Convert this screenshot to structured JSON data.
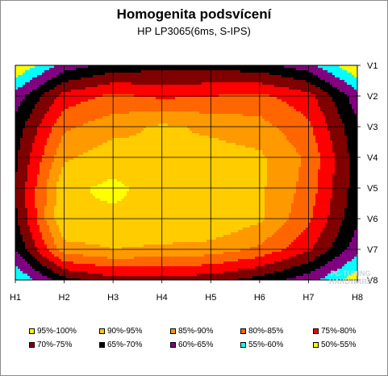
{
  "chart_data": {
    "type": "heatmap",
    "title": "Homogenita podsvícení",
    "subtitle": "HP LP3065(6ms, S-IPS)",
    "x_ticks": [
      "H1",
      "H2",
      "H3",
      "H4",
      "H5",
      "H6",
      "H7",
      "H8"
    ],
    "y_ticks": [
      "V1",
      "V2",
      "V3",
      "V4",
      "V5",
      "V6",
      "V7",
      "V8"
    ],
    "grid": true,
    "legend_position": "bottom",
    "values": [
      [
        50,
        62,
        67,
        68,
        68,
        67,
        62,
        50
      ],
      [
        62,
        77,
        81,
        79,
        80,
        81,
        77,
        62
      ],
      [
        67,
        84,
        88,
        91,
        89,
        87,
        81,
        66
      ],
      [
        69,
        89,
        93,
        90,
        92,
        91,
        84,
        67
      ],
      [
        70,
        94,
        96,
        93,
        93,
        91,
        83,
        67
      ],
      [
        69,
        95,
        94,
        95,
        95,
        91,
        81,
        66
      ],
      [
        65,
        88,
        90,
        89,
        88,
        84,
        76,
        62
      ],
      [
        55,
        68,
        73,
        73,
        72,
        68,
        62,
        52
      ]
    ],
    "bands": [
      {
        "label": "95%-100%",
        "min": 95,
        "max": 100,
        "color": "#ffff00"
      },
      {
        "label": "90%-95%",
        "min": 90,
        "max": 95,
        "color": "#ffcc00"
      },
      {
        "label": "85%-90%",
        "min": 85,
        "max": 90,
        "color": "#ff9900"
      },
      {
        "label": "80%-85%",
        "min": 80,
        "max": 85,
        "color": "#ff6600"
      },
      {
        "label": "75%-80%",
        "min": 75,
        "max": 80,
        "color": "#ff0000"
      },
      {
        "label": "70%-75%",
        "min": 70,
        "max": 75,
        "color": "#800000"
      },
      {
        "label": "65%-70%",
        "min": 65,
        "max": 70,
        "color": "#000000"
      },
      {
        "label": "60%-65%",
        "min": 60,
        "max": 65,
        "color": "#800080"
      },
      {
        "label": "55%-60%",
        "min": 55,
        "max": 60,
        "color": "#00ffff"
      },
      {
        "label": "50%-55%",
        "min": 50,
        "max": 55,
        "color": "#ffff00"
      }
    ]
  },
  "watermark": {
    "line1": "PC-TUNING",
    "line2": "HARDWARE"
  }
}
